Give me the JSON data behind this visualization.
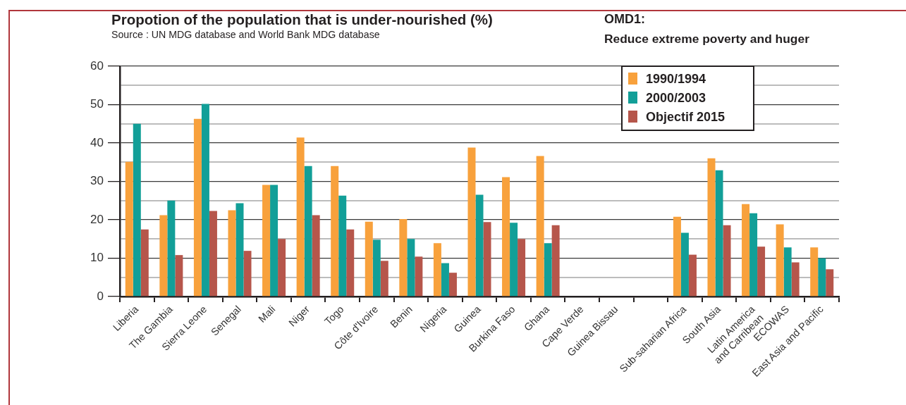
{
  "chart_data": {
    "type": "bar",
    "title": "Propotion of the population that is under-nourished (%)",
    "annotations": [
      "Source : UN MDG database and World Bank MDG database",
      "OMD1:",
      "Reduce extreme poverty and huger"
    ],
    "categories": [
      "Liberia",
      "The Gambia",
      "Sierra Leone",
      "Senegal",
      "Mali",
      "Niger",
      "Togo",
      "Côte d'Ivoire",
      "Benin",
      "Nigeria",
      "Guinea",
      "Burkina Faso",
      "Ghana",
      "Cape Verde",
      "Guinea Bissau",
      null,
      "Sub-saharian Africa",
      "South Asia",
      "Latin America\nand Carribean",
      "ECOWAS",
      "East Asia and Pacific"
    ],
    "series": [
      {
        "name": "1990/1994",
        "color": "#f8a13c",
        "values": [
          35.1,
          21.2,
          46.3,
          22.5,
          29.1,
          41.4,
          34.0,
          19.5,
          20.2,
          13.9,
          38.8,
          31.1,
          36.6,
          null,
          null,
          null,
          20.8,
          36.0,
          24.1,
          18.8,
          12.8
        ]
      },
      {
        "name": "2000/2003",
        "color": "#129f98",
        "values": [
          45.0,
          25.0,
          50.2,
          24.3,
          29.1,
          34.0,
          26.3,
          14.8,
          15.0,
          8.7,
          26.5,
          19.2,
          13.9,
          null,
          null,
          null,
          16.6,
          32.9,
          21.7,
          12.8,
          10.0
        ]
      },
      {
        "name": "Objectif 2015",
        "color": "#b6564b",
        "values": [
          17.5,
          10.8,
          22.3,
          11.9,
          15.0,
          21.2,
          17.5,
          9.3,
          10.4,
          6.2,
          19.4,
          15.0,
          18.6,
          null,
          null,
          null,
          10.9,
          18.6,
          13.0,
          8.9,
          7.1
        ]
      }
    ],
    "ylim": [
      0,
      60
    ],
    "yticks": [
      0,
      {
        "value": 5,
        "label": null
      },
      10,
      {
        "value": 15,
        "label": null
      },
      20,
      {
        "value": 25,
        "label": null
      },
      30,
      {
        "value": 35,
        "label": null
      },
      40,
      {
        "value": 45,
        "label": null
      },
      50,
      {
        "value": 55,
        "label": null
      },
      60
    ],
    "grid": "y",
    "legend": "top right"
  }
}
